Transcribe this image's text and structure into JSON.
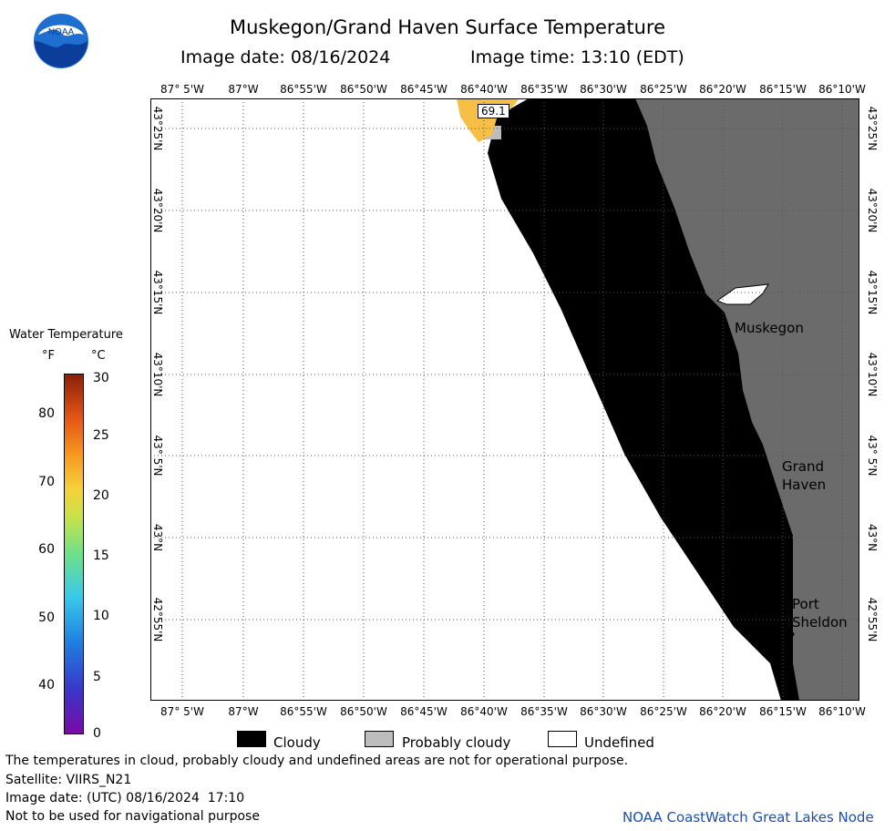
{
  "header": {
    "title": "Muskegon/Grand Haven Surface Temperature",
    "image_date": "Image date: 08/16/2024",
    "image_time": "Image time: 13:10 (EDT)",
    "logo_text": "NOAA"
  },
  "legend": {
    "title": "Water Temperature",
    "unit_f": "°F",
    "unit_c": "°C",
    "f_ticks": [
      "80",
      "70",
      "60",
      "50",
      "40"
    ],
    "c_ticks": [
      "30",
      "25",
      "20",
      "15",
      "10",
      "5",
      "0"
    ]
  },
  "map": {
    "lon_labels": [
      "87° 5'W",
      "87°W",
      "86°55'W",
      "86°50'W",
      "86°45'W",
      "86°40'W",
      "86°35'W",
      "86°30'W",
      "86°25'W",
      "86°20'W",
      "86°15'W",
      "86°10'W"
    ],
    "lat_labels": [
      "43°25'N",
      "43°20'N",
      "43°15'N",
      "43°10'N",
      "43° 5'N",
      "43°N",
      "42°55'N"
    ],
    "temp_label": "69.1",
    "places": {
      "muskegon": "Muskegon",
      "grand_haven_1": "Grand",
      "grand_haven_2": "Haven",
      "port_sheldon_1": "Port",
      "port_sheldon_2": "Sheldon"
    }
  },
  "key": {
    "cloudy": "Cloudy",
    "probably_cloudy": "Probably cloudy",
    "undefined": "Undefined",
    "colors": {
      "cloudy": "#000000",
      "probably_cloudy": "#bdbdbd",
      "undefined": "#ffffff",
      "land": "#6b6b6b",
      "warm_water": "#f7bf45"
    }
  },
  "footer": {
    "line1": "The temperatures in cloud, probably cloudy and undefined areas are not for operational purpose.",
    "line2": "Satellite: VIIRS_N21",
    "line3": "Image date: (UTC) 08/16/2024  17:10",
    "line4": "Not to be used for navigational purpose",
    "credit": "NOAA CoastWatch Great Lakes Node"
  }
}
